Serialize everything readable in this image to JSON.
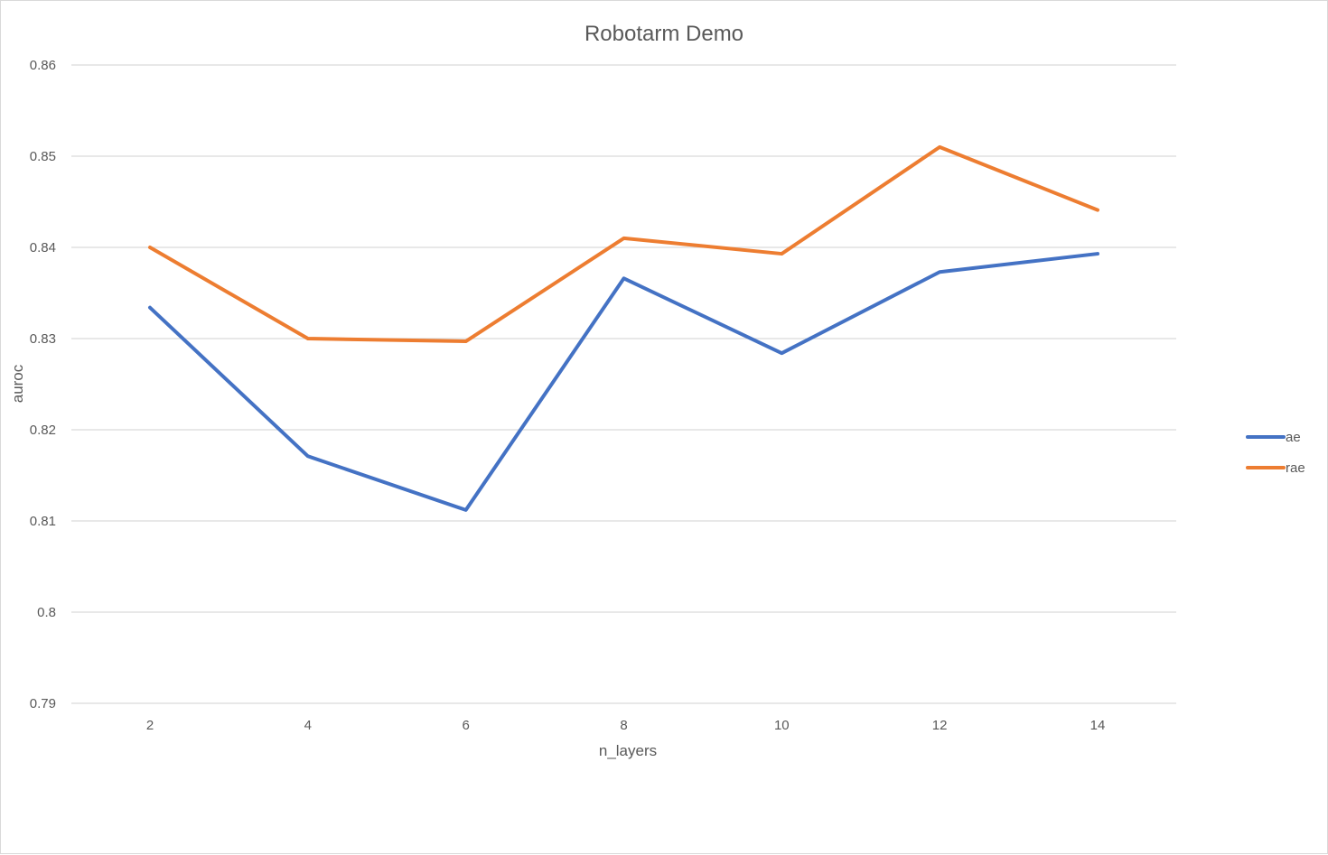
{
  "chart_data": {
    "type": "line",
    "title": "Robotarm Demo",
    "xlabel": "n_layers",
    "ylabel": "auroc",
    "x": [
      2,
      4,
      6,
      8,
      10,
      12,
      14
    ],
    "x_tick_labels": [
      "2",
      "4",
      "6",
      "8",
      "10",
      "12",
      "14"
    ],
    "ylim": [
      0.79,
      0.86
    ],
    "y_ticks": [
      0.79,
      0.8,
      0.81,
      0.82,
      0.83,
      0.84,
      0.85,
      0.86
    ],
    "y_tick_labels": [
      "0.79",
      "0.8",
      "0.81",
      "0.82",
      "0.83",
      "0.84",
      "0.85",
      "0.86"
    ],
    "grid": "horizontal",
    "legend_position": "right",
    "series": [
      {
        "name": "ae",
        "color": "#4472c4",
        "values": [
          0.8334,
          0.8171,
          0.8112,
          0.8366,
          0.8284,
          0.8373,
          0.8393
        ]
      },
      {
        "name": "rae",
        "color": "#ed7d31",
        "values": [
          0.84,
          0.83,
          0.8297,
          0.841,
          0.8393,
          0.851,
          0.8441
        ]
      }
    ]
  }
}
